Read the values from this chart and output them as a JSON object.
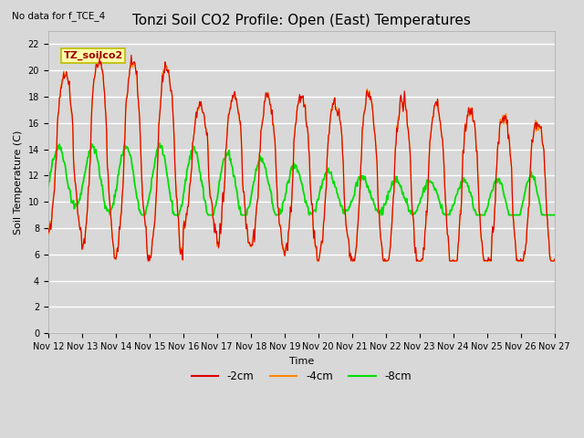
{
  "title": "Tonzi Soil CO2 Profile: Open (East) Temperatures",
  "no_data_text": "No data for f_TCE_4",
  "ylabel": "Soil Temperature (C)",
  "xlabel": "Time",
  "legend_box_label": "TZ_soilco2",
  "ylim": [
    0,
    23
  ],
  "yticks": [
    0,
    2,
    4,
    6,
    8,
    10,
    12,
    14,
    16,
    18,
    20,
    22
  ],
  "x_tick_labels": [
    "Nov 12",
    "Nov 13",
    "Nov 14",
    "Nov 15",
    "Nov 16",
    "Nov 17",
    "Nov 18",
    "Nov 19",
    "Nov 20",
    "Nov 21",
    "Nov 22",
    "Nov 23",
    "Nov 24",
    "Nov 25",
    "Nov 26",
    "Nov 27"
  ],
  "line_colors": {
    "neg2cm": "#dd0000",
    "neg4cm": "#ff8800",
    "neg8cm": "#00dd00"
  },
  "line_labels": [
    "-2cm",
    "-4cm",
    "-8cm"
  ],
  "background_color": "#d8d8d8",
  "plot_bg_color": "#d8d8d8",
  "grid_color": "#ffffff",
  "legend_box_color": "#ffffaa",
  "legend_box_edge": "#bbbb00",
  "title_fontsize": 11,
  "axis_fontsize": 8,
  "tick_fontsize": 7
}
